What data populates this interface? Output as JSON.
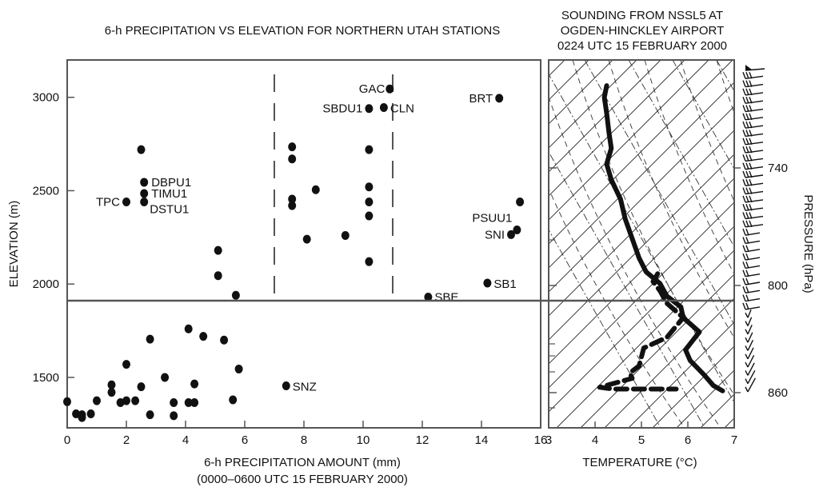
{
  "chart_data": [
    {
      "type": "scatter",
      "title": "6-h PRECIPITATION VS ELEVATION FOR NORTHERN UTAH STATIONS",
      "xlabel": "6-h PRECIPITATION AMOUNT (mm)",
      "xlabel2": "(0000–0600 UTC 15 FEBRUARY 2000)",
      "ylabel": "ELEVATION (m)",
      "xlim": [
        0,
        16
      ],
      "ylim": [
        1230,
        3200
      ],
      "xticks": [
        "0",
        "2",
        "4",
        "6",
        "8",
        "10",
        "12",
        "14",
        "16"
      ],
      "yticks": [
        "1500",
        "2000",
        "2500",
        "3000"
      ],
      "reference_line_y": 1900,
      "dashed_x": [
        7,
        11
      ],
      "points": [
        {
          "x": 10.9,
          "y": 3045,
          "label": "GAC"
        },
        {
          "x": 10.2,
          "y": 2940,
          "label": "SBDU1"
        },
        {
          "x": 10.7,
          "y": 2945,
          "label": "CLN"
        },
        {
          "x": 14.6,
          "y": 2995,
          "label": "BRT"
        },
        {
          "x": 2.5,
          "y": 2720
        },
        {
          "x": 2.6,
          "y": 2545,
          "label": "DBPU1"
        },
        {
          "x": 2.6,
          "y": 2485,
          "label": "TIMU1"
        },
        {
          "x": 2.0,
          "y": 2440,
          "label": "TPC"
        },
        {
          "x": 2.6,
          "y": 2440,
          "label": "DSTU1"
        },
        {
          "x": 7.6,
          "y": 2735
        },
        {
          "x": 7.6,
          "y": 2670
        },
        {
          "x": 7.6,
          "y": 2455
        },
        {
          "x": 7.6,
          "y": 2420
        },
        {
          "x": 8.4,
          "y": 2505
        },
        {
          "x": 8.1,
          "y": 2240
        },
        {
          "x": 9.4,
          "y": 2260
        },
        {
          "x": 10.2,
          "y": 2720
        },
        {
          "x": 10.2,
          "y": 2520
        },
        {
          "x": 10.2,
          "y": 2440
        },
        {
          "x": 10.2,
          "y": 2365
        },
        {
          "x": 10.2,
          "y": 2120
        },
        {
          "x": 15.3,
          "y": 2440
        },
        {
          "x": 15.2,
          "y": 2290,
          "label": "PSUU1"
        },
        {
          "x": 15.0,
          "y": 2265,
          "label": "SNI"
        },
        {
          "x": 5.1,
          "y": 2180
        },
        {
          "x": 5.1,
          "y": 2045
        },
        {
          "x": 5.7,
          "y": 1940
        },
        {
          "x": 14.2,
          "y": 2005,
          "label": "SB1"
        },
        {
          "x": 12.2,
          "y": 1930,
          "label": "SBE"
        },
        {
          "x": 4.1,
          "y": 1760
        },
        {
          "x": 4.6,
          "y": 1720
        },
        {
          "x": 5.3,
          "y": 1700
        },
        {
          "x": 2.8,
          "y": 1705
        },
        {
          "x": 2.0,
          "y": 1570
        },
        {
          "x": 5.8,
          "y": 1545
        },
        {
          "x": 3.3,
          "y": 1500
        },
        {
          "x": 7.4,
          "y": 1455,
          "label": "SNZ"
        },
        {
          "x": 1.5,
          "y": 1460
        },
        {
          "x": 1.5,
          "y": 1420
        },
        {
          "x": 2.5,
          "y": 1450
        },
        {
          "x": 4.3,
          "y": 1465
        },
        {
          "x": 0.0,
          "y": 1370
        },
        {
          "x": 1.0,
          "y": 1375
        },
        {
          "x": 1.8,
          "y": 1365
        },
        {
          "x": 2.0,
          "y": 1375
        },
        {
          "x": 2.3,
          "y": 1375
        },
        {
          "x": 3.6,
          "y": 1365
        },
        {
          "x": 4.1,
          "y": 1365
        },
        {
          "x": 4.3,
          "y": 1365
        },
        {
          "x": 5.6,
          "y": 1380
        },
        {
          "x": 0.3,
          "y": 1305
        },
        {
          "x": 0.5,
          "y": 1300
        },
        {
          "x": 0.5,
          "y": 1285
        },
        {
          "x": 0.8,
          "y": 1305
        },
        {
          "x": 2.8,
          "y": 1300
        },
        {
          "x": 3.6,
          "y": 1295
        }
      ]
    },
    {
      "type": "line",
      "title": "SOUNDING FROM NSSL5 AT",
      "title2": "OGDEN-HINCKLEY AIRPORT",
      "title3": "0224 UTC 15 FEBRUARY 2000",
      "xlabel": "TEMPERATURE (°C)",
      "ylabel": "PRESSURE (hPa)",
      "xlim": [
        3,
        7
      ],
      "xticks": [
        "3",
        "4",
        "5",
        "6",
        "7"
      ],
      "pressure_ticks": [
        "740",
        "800",
        "860"
      ],
      "pressure_tick_values": [
        740,
        800,
        860
      ],
      "series": [
        {
          "style": "solid",
          "points": [
            [
              4.25,
              698
            ],
            [
              4.2,
              704
            ],
            [
              4.25,
              712
            ],
            [
              4.3,
              722
            ],
            [
              4.35,
              730
            ],
            [
              4.25,
              738
            ],
            [
              4.35,
              746
            ],
            [
              4.55,
              756
            ],
            [
              4.65,
              766
            ],
            [
              4.8,
              776
            ],
            [
              4.95,
              786
            ],
            [
              5.1,
              793
            ],
            [
              5.4,
              799
            ],
            [
              5.55,
              806
            ],
            [
              5.85,
              812
            ],
            [
              5.9,
              818
            ],
            [
              6.25,
              826
            ],
            [
              6.1,
              831
            ],
            [
              5.95,
              836
            ],
            [
              6.05,
              842
            ],
            [
              6.35,
              850
            ],
            [
              6.55,
              856
            ],
            [
              6.75,
              859
            ]
          ]
        },
        {
          "style": "dashed",
          "points": [
            [
              5.35,
              794
            ],
            [
              5.25,
              798
            ],
            [
              5.4,
              803
            ],
            [
              5.55,
              810
            ],
            [
              5.9,
              818
            ],
            [
              5.55,
              829
            ],
            [
              5.05,
              835
            ],
            [
              4.95,
              845
            ],
            [
              4.75,
              849
            ],
            [
              4.8,
              852
            ],
            [
              4.1,
              857
            ],
            [
              4.4,
              858
            ],
            [
              5.2,
              858
            ],
            [
              5.75,
              858
            ]
          ]
        }
      ],
      "wind_barbs": 40
    }
  ]
}
